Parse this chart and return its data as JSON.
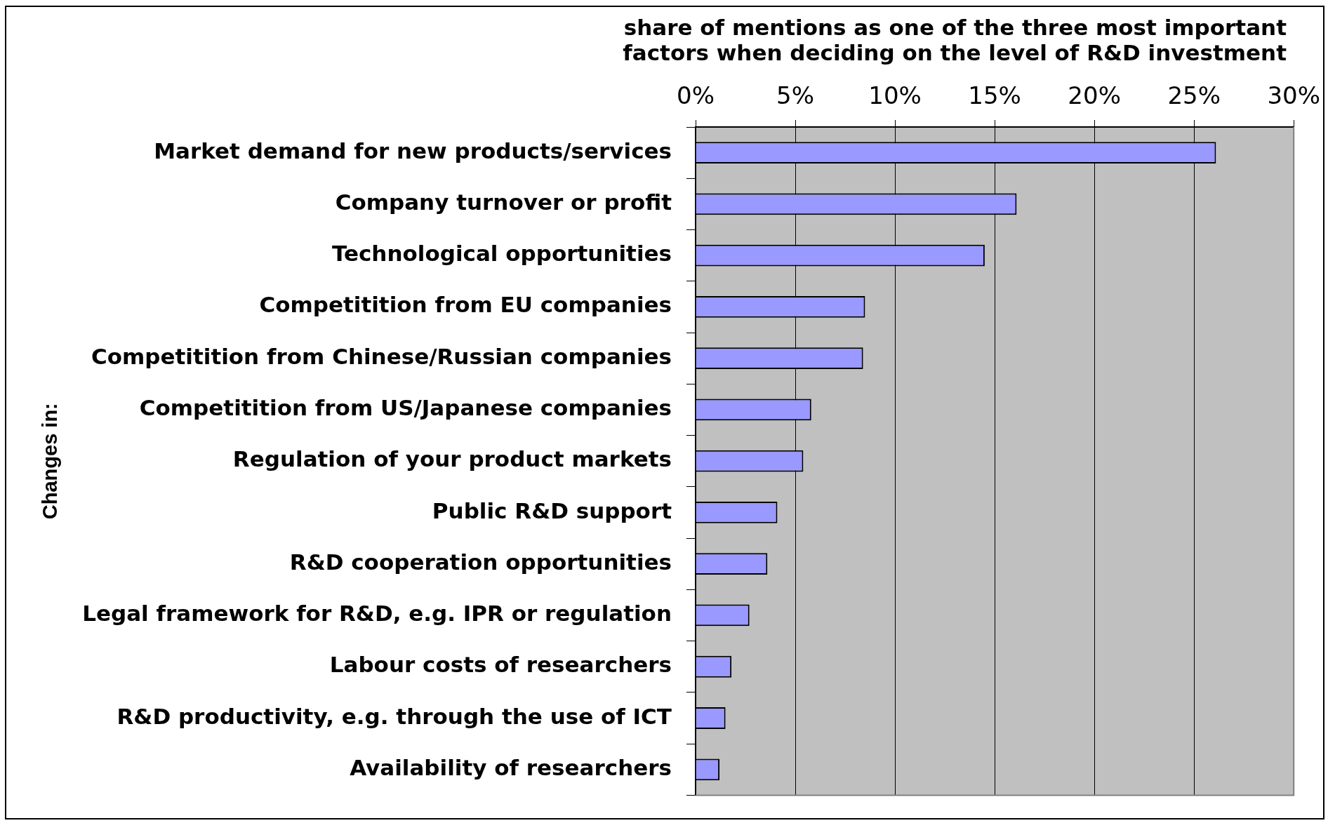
{
  "chart_data": {
    "type": "bar",
    "orientation": "horizontal",
    "xlabel": "share of mentions as one of the three most important factors when deciding on the level of R&D investment",
    "ylabel": "Changes in:",
    "categories": [
      "Market demand for new products/services",
      "Company turnover or profit",
      "Technological opportunities",
      "Competitition from EU companies",
      "Competitition from Chinese/Russian companies",
      "Competitition from US/Japanese companies",
      "Regulation of your product markets",
      "Public R&D support",
      "R&D cooperation opportunities",
      "Legal framework for R&D, e.g. IPR or regulation",
      "Labour costs of researchers",
      "R&D productivity, e.g. through the use of ICT",
      "Availability of researchers"
    ],
    "values": [
      26.1,
      16.1,
      14.5,
      8.5,
      8.4,
      5.8,
      5.4,
      4.1,
      3.6,
      2.7,
      1.8,
      1.5,
      1.2
    ],
    "color": "#9999ff",
    "xlim": [
      0,
      30
    ],
    "xticks": [
      {
        "value": 0,
        "label": "0%"
      },
      {
        "value": 5,
        "label": "5%"
      },
      {
        "value": 10,
        "label": "10%"
      },
      {
        "value": 15,
        "label": "15%"
      },
      {
        "value": 20,
        "label": "20%"
      },
      {
        "value": 25,
        "label": "25%"
      },
      {
        "value": 30,
        "label": "30%"
      }
    ],
    "grid": "x",
    "legend": false
  }
}
